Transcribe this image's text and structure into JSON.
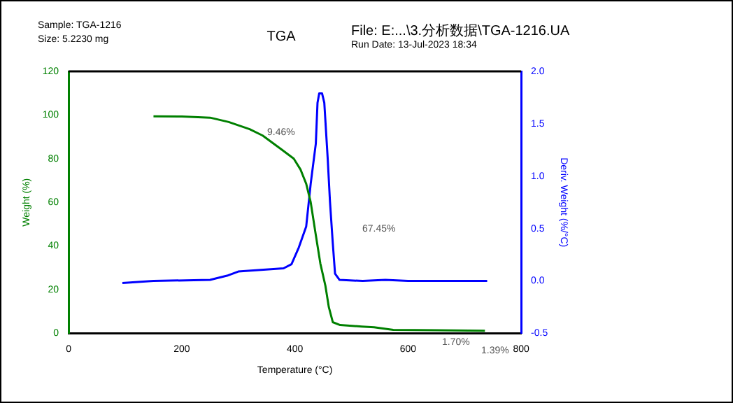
{
  "chart_data": {
    "type": "line",
    "title": "TGA",
    "xlabel": "Temperature (°C)",
    "ylabel": "Weight (%)",
    "y2label": "Deriv. Weight (%/°C)",
    "xlim": [
      0,
      800
    ],
    "xticks": [
      0,
      200,
      400,
      600,
      800
    ],
    "ylim": [
      0,
      120
    ],
    "yticks": [
      0,
      20,
      40,
      60,
      80,
      100,
      120
    ],
    "y2lim": [
      -0.5,
      2
    ],
    "y2ticks": [
      {
        "value": -0.5,
        "label": "-0.5"
      },
      {
        "value": 0,
        "label": "0.0"
      },
      {
        "value": 0.5,
        "label": "0.5"
      },
      {
        "value": 1,
        "label": "1.0"
      },
      {
        "value": 1.5,
        "label": "1.5"
      },
      {
        "value": 2,
        "label": "2.0"
      }
    ],
    "grid": false,
    "legend": false,
    "marker": "none",
    "line_style": "solid",
    "series": [
      {
        "color": "#008000",
        "x": [
          150,
          200,
          250,
          283,
          320,
          343,
          377,
          398,
          410,
          420,
          428,
          437,
          445,
          454,
          460,
          467,
          480,
          518,
          540,
          574,
          650,
          736
        ],
        "values": [
          99.4,
          99.3,
          98.8,
          96.8,
          93.5,
          90.6,
          84.1,
          80,
          75,
          68.5,
          60,
          45,
          32,
          21.7,
          12,
          5.1,
          3.8,
          3.1,
          2.8,
          1.6,
          1.4,
          1.2
        ]
      },
      {
        "color": "#0000ff",
        "axis": "y2",
        "x": [
          95,
          150,
          250,
          280,
          300,
          380,
          394,
          407,
          420,
          428,
          437,
          440,
          443,
          448,
          452,
          458,
          462,
          467,
          471,
          479,
          520,
          560,
          600,
          740
        ],
        "values": [
          -0.02,
          0,
          0.01,
          0.05,
          0.09,
          0.12,
          0.16,
          0.32,
          0.52,
          0.93,
          1.31,
          1.7,
          1.79,
          1.79,
          1.7,
          1.17,
          0.76,
          0.36,
          0.07,
          0.01,
          0,
          0.01,
          0,
          0
        ]
      }
    ],
    "annotations": [
      "Sample: TGA-1216",
      "Size: 5.2230 mg",
      "File: E:...\\3.分析数据\\TGA-1216.UA",
      "Run Date: 13-Jul-2023 18:34",
      "9.46%",
      "67.45%",
      "1.70%",
      "1.39%"
    ]
  }
}
